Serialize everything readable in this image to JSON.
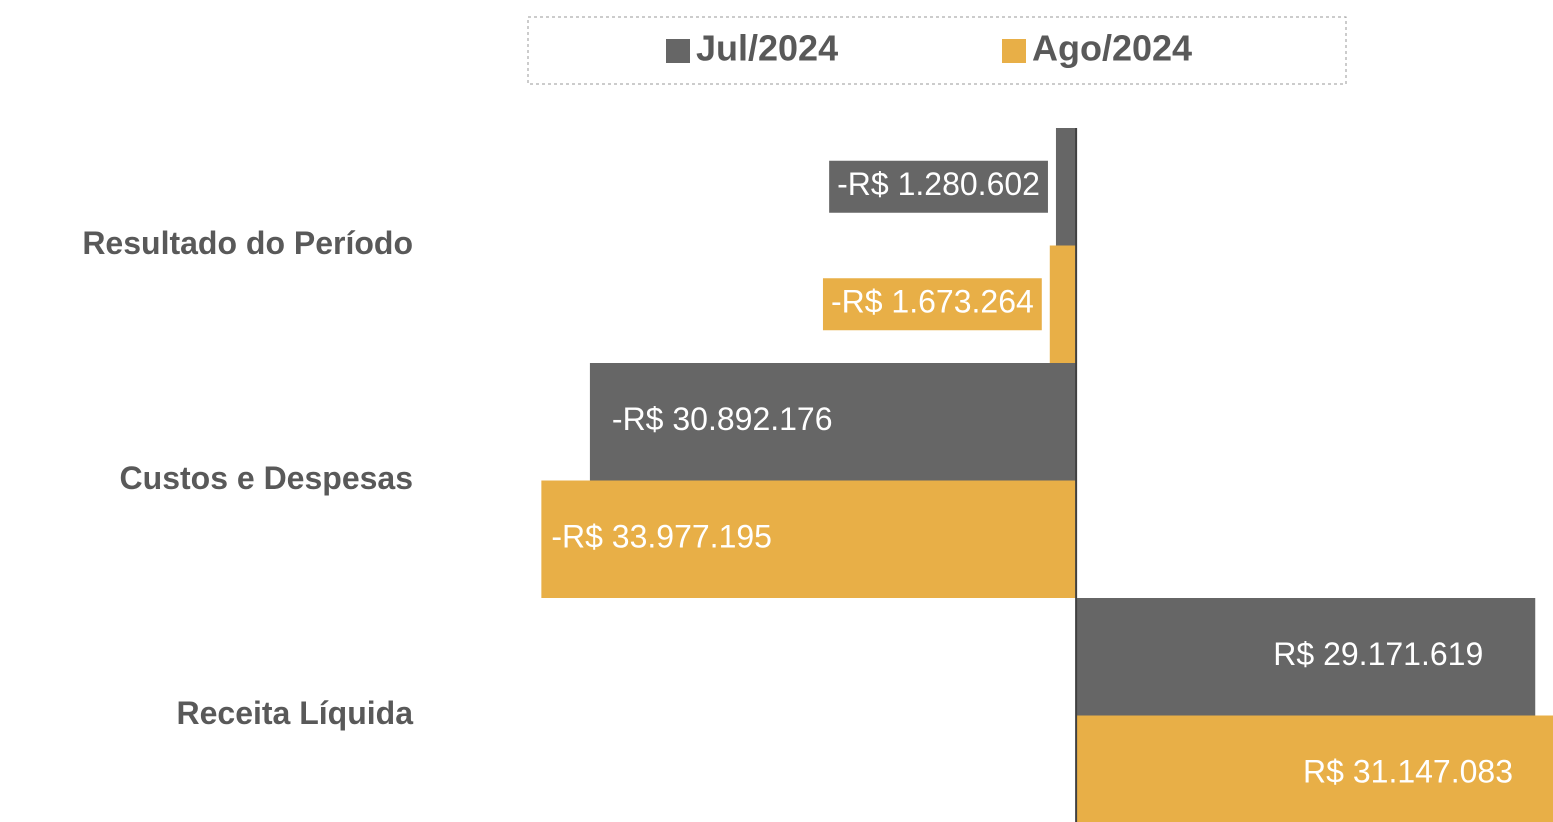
{
  "chart_data": {
    "type": "barh",
    "categories": [
      "Resultado do Período",
      "Custos e Despesas",
      "Receita Líquida"
    ],
    "series": [
      {
        "name": "Jul/2024",
        "color": "#666666",
        "values": [
          -1280602,
          -30892176,
          29171619
        ],
        "value_labels": [
          "-R$ 1.280.602",
          "-R$ 30.892.176",
          "R$ 29.171.619"
        ]
      },
      {
        "name": "Ago/2024",
        "color": "#e8af47",
        "values": [
          -1673264,
          -33977195,
          31147083
        ],
        "value_labels": [
          "-R$ 1.673.264",
          "-R$ 33.977.195",
          "R$ 31.147.083"
        ]
      }
    ],
    "xlim": [
      -34000000,
      30300000
    ],
    "legend": "top"
  }
}
